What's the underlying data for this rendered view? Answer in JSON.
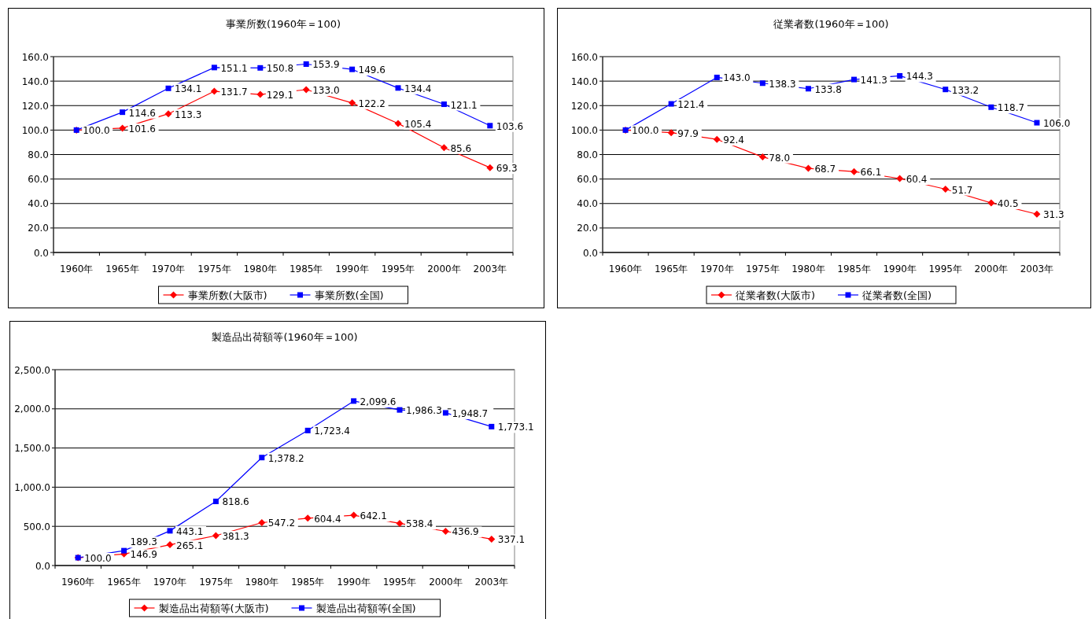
{
  "chart_data": [
    {
      "type": "line",
      "title": "事業所数(1960年＝100)",
      "categories": [
        "1960年",
        "1965年",
        "1970年",
        "1975年",
        "1980年",
        "1985年",
        "1990年",
        "1995年",
        "2000年",
        "2003年"
      ],
      "ylim": [
        0,
        160
      ],
      "yticks": [
        {
          "value": 0,
          "label": "0.0"
        },
        {
          "value": 20,
          "label": "20.0"
        },
        {
          "value": 40,
          "label": "40.0"
        },
        {
          "value": 60,
          "label": "60.0"
        },
        {
          "value": 80,
          "label": "80.0"
        },
        {
          "value": 100,
          "label": "100.0"
        },
        {
          "value": 120,
          "label": "120.0"
        },
        {
          "value": 140,
          "label": "140.0"
        },
        {
          "value": 160,
          "label": "160.0"
        }
      ],
      "grid": "y",
      "legend": "bottom",
      "series": [
        {
          "name": "事業所数(大阪市)",
          "color": "#ff0000",
          "marker": "diamond",
          "values": [
            100.0,
            101.6,
            113.3,
            131.7,
            129.1,
            133.0,
            122.2,
            105.4,
            85.6,
            69.3
          ],
          "value_labels": [
            "100.0",
            "101.6",
            "113.3",
            "131.7",
            "129.1",
            "133.0",
            "122.2",
            "105.4",
            "85.6",
            "69.3"
          ]
        },
        {
          "name": "事業所数(全国)",
          "color": "#0000ff",
          "marker": "square",
          "values": [
            100.0,
            114.6,
            134.1,
            151.1,
            150.8,
            153.9,
            149.6,
            134.4,
            121.1,
            103.6
          ],
          "value_labels": [
            null,
            "114.6",
            "134.1",
            "151.1",
            "150.8",
            "153.9",
            "149.6",
            "134.4",
            "121.1",
            "103.6"
          ]
        }
      ]
    },
    {
      "type": "line",
      "title": "従業者数(1960年＝100)",
      "categories": [
        "1960年",
        "1965年",
        "1970年",
        "1975年",
        "1980年",
        "1985年",
        "1990年",
        "1995年",
        "2000年",
        "2003年"
      ],
      "ylim": [
        0,
        160
      ],
      "yticks": [
        {
          "value": 0,
          "label": "0.0"
        },
        {
          "value": 20,
          "label": "20.0"
        },
        {
          "value": 40,
          "label": "40.0"
        },
        {
          "value": 60,
          "label": "60.0"
        },
        {
          "value": 80,
          "label": "80.0"
        },
        {
          "value": 100,
          "label": "100.0"
        },
        {
          "value": 120,
          "label": "120.0"
        },
        {
          "value": 140,
          "label": "140.0"
        },
        {
          "value": 160,
          "label": "160.0"
        }
      ],
      "grid": "y",
      "legend": "bottom",
      "series": [
        {
          "name": "従業者数(大阪市)",
          "color": "#ff0000",
          "marker": "diamond",
          "values": [
            100.0,
            97.9,
            92.4,
            78.0,
            68.7,
            66.1,
            60.4,
            51.7,
            40.5,
            31.3
          ],
          "value_labels": [
            "100.0",
            "97.9",
            "92.4",
            "78.0",
            "68.7",
            "66.1",
            "60.4",
            "51.7",
            "40.5",
            "31.3"
          ]
        },
        {
          "name": "従業者数(全国)",
          "color": "#0000ff",
          "marker": "square",
          "values": [
            100.0,
            121.4,
            143.0,
            138.3,
            133.8,
            141.3,
            144.3,
            133.2,
            118.7,
            106.0
          ],
          "value_labels": [
            null,
            "121.4",
            "143.0",
            "138.3",
            "133.8",
            "141.3",
            "144.3",
            "133.2",
            "118.7",
            "106.0"
          ]
        }
      ]
    },
    {
      "type": "line",
      "title": "製造品出荷額等(1960年＝100)",
      "categories": [
        "1960年",
        "1965年",
        "1970年",
        "1975年",
        "1980年",
        "1985年",
        "1990年",
        "1995年",
        "2000年",
        "2003年"
      ],
      "ylim": [
        0,
        2500
      ],
      "yticks": [
        {
          "value": 0,
          "label": "0.0"
        },
        {
          "value": 500,
          "label": "500.0"
        },
        {
          "value": 1000,
          "label": "1,000.0"
        },
        {
          "value": 1500,
          "label": "1,500.0"
        },
        {
          "value": 2000,
          "label": "2,000.0"
        },
        {
          "value": 2500,
          "label": "2,500.0"
        }
      ],
      "grid": "y",
      "legend": "bottom",
      "series": [
        {
          "name": "製造品出荷額等(大阪市)",
          "color": "#ff0000",
          "marker": "diamond",
          "values": [
            100.0,
            146.9,
            265.1,
            381.3,
            547.2,
            604.4,
            642.1,
            538.4,
            436.9,
            337.1
          ],
          "value_labels": [
            "100.0",
            "146.9",
            "265.1",
            "381.3",
            "547.2",
            "604.4",
            "642.1",
            "538.4",
            "436.9",
            "337.1"
          ]
        },
        {
          "name": "製造品出荷額等(全国)",
          "color": "#0000ff",
          "marker": "square",
          "values": [
            100.0,
            189.3,
            443.1,
            818.6,
            1378.2,
            1723.4,
            2099.6,
            1986.3,
            1948.7,
            1773.1
          ],
          "value_labels": [
            null,
            "189.3",
            "443.1",
            "818.6",
            "1,378.2",
            "1,723.4",
            "2,099.6",
            "1,986.3",
            "1,948.7",
            "1,773.1"
          ]
        }
      ]
    }
  ]
}
